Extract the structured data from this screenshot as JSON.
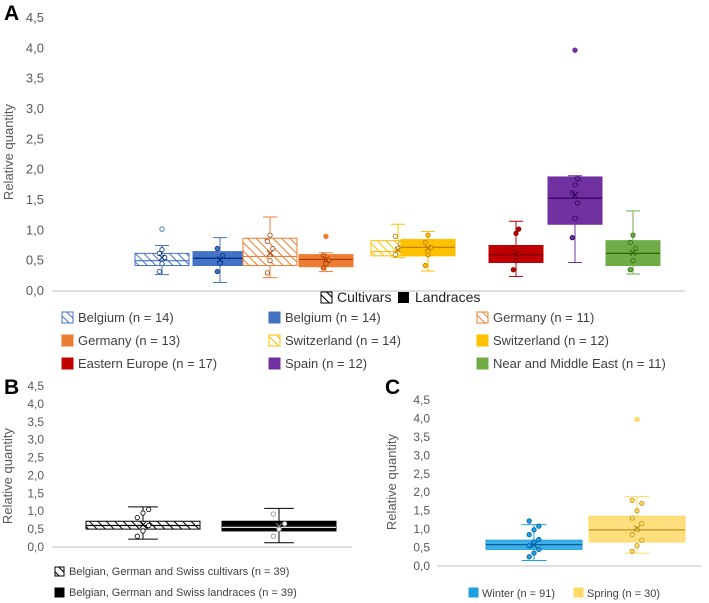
{
  "chart_data": [
    {
      "panel": "A",
      "type": "box",
      "title": "",
      "ylabel": "Relative quantity",
      "ylim": [
        0,
        4.5
      ],
      "yticks": [
        "0,0",
        "0,5",
        "1,0",
        "1,5",
        "2,0",
        "2,5",
        "3,0",
        "3,5",
        "4,0",
        "4,5"
      ],
      "type_legend": [
        {
          "label": "Cultivars",
          "fill": "hatch"
        },
        {
          "label": "Landraces",
          "fill": "solid"
        }
      ],
      "series": [
        {
          "name": "Belgium (n = 14)",
          "fill": "hatch",
          "color": "#4472C4",
          "min": 0.27,
          "q1": 0.42,
          "median": 0.5,
          "q3": 0.62,
          "max": 0.75,
          "mean": 0.55,
          "outliers": [
            1.02
          ],
          "points": [
            0.32,
            0.45,
            0.55,
            0.62,
            0.68
          ]
        },
        {
          "name": "Belgium (n = 14)",
          "fill": "solid",
          "color": "#4472C4",
          "min": 0.14,
          "q1": 0.42,
          "median": 0.54,
          "q3": 0.65,
          "max": 0.88,
          "mean": 0.52,
          "outliers": [],
          "points": [
            0.32,
            0.46,
            0.58,
            0.7
          ]
        },
        {
          "name": "Germany (n = 11)",
          "fill": "hatch",
          "color": "#ED7D31",
          "min": 0.22,
          "q1": 0.42,
          "median": 0.57,
          "q3": 0.87,
          "max": 1.22,
          "mean": 0.62,
          "outliers": [],
          "points": [
            0.3,
            0.5,
            0.7,
            0.82,
            0.92
          ]
        },
        {
          "name": "Germany (n = 13)",
          "fill": "solid",
          "color": "#ED7D31",
          "min": 0.32,
          "q1": 0.4,
          "median": 0.52,
          "q3": 0.6,
          "max": 0.63,
          "mean": 0.52,
          "outliers": [
            0.9
          ],
          "points": [
            0.38,
            0.45,
            0.5,
            0.58
          ]
        },
        {
          "name": "Switzerland (n = 14)",
          "fill": "hatch",
          "color": "#FFC000",
          "min": 0.55,
          "q1": 0.58,
          "median": 0.65,
          "q3": 0.83,
          "max": 1.1,
          "mean": 0.68,
          "outliers": [],
          "points": [
            0.6,
            0.7,
            0.78,
            0.9
          ]
        },
        {
          "name": "Switzerland (n = 12)",
          "fill": "solid",
          "color": "#FFC000",
          "min": 0.33,
          "q1": 0.58,
          "median": 0.72,
          "q3": 0.85,
          "max": 0.98,
          "mean": 0.7,
          "outliers": [],
          "points": [
            0.42,
            0.6,
            0.72,
            0.8,
            0.92
          ]
        },
        {
          "name": "Eastern Europe (n = 17)",
          "fill": "solid",
          "color": "#C00000",
          "min": 0.24,
          "q1": 0.47,
          "median": 0.6,
          "q3": 0.75,
          "max": 1.15,
          "mean": 0.6,
          "outliers": [],
          "points": [
            0.35,
            0.5,
            0.62,
            0.7,
            0.95,
            1.02
          ]
        },
        {
          "name": "Spain (n = 12)",
          "fill": "solid",
          "color": "#7030A0",
          "min": 0.47,
          "q1": 1.1,
          "median": 1.53,
          "q3": 1.88,
          "max": 1.9,
          "mean": 1.58,
          "outliers": [
            3.97
          ],
          "points": [
            0.88,
            1.2,
            1.45,
            1.62,
            1.75,
            1.85
          ]
        },
        {
          "name": "Near and Middle East (n = 11)",
          "fill": "solid",
          "color": "#70AD47",
          "min": 0.28,
          "q1": 0.42,
          "median": 0.62,
          "q3": 0.83,
          "max": 1.32,
          "mean": 0.63,
          "outliers": [],
          "points": [
            0.35,
            0.5,
            0.7,
            0.8,
            0.92
          ]
        }
      ]
    },
    {
      "panel": "B",
      "type": "box",
      "ylabel": "Relative quantity",
      "ylim": [
        0,
        4.5
      ],
      "yticks": [
        "0,0",
        "0,5",
        "1,0",
        "1,5",
        "2,0",
        "2,5",
        "3,0",
        "3,5",
        "4,0",
        "4,5"
      ],
      "series": [
        {
          "name": "Belgian, German and Swiss cultivars (n = 39)",
          "fill": "hatch",
          "color": "#000000",
          "min": 0.22,
          "q1": 0.5,
          "median": 0.6,
          "q3": 0.72,
          "max": 1.12,
          "mean": 0.62,
          "outliers": [],
          "points": [
            0.3,
            0.45,
            0.6,
            0.82,
            0.95,
            1.05
          ]
        },
        {
          "name": "Belgian, German and Swiss landraces (n = 39)",
          "fill": "solid",
          "color": "#000000",
          "min": 0.12,
          "q1": 0.45,
          "median": 0.55,
          "q3": 0.72,
          "max": 1.08,
          "mean": 0.58,
          "outliers": [],
          "points": [
            0.3,
            0.5,
            0.65,
            0.92
          ]
        }
      ]
    },
    {
      "panel": "C",
      "type": "box",
      "ylabel": "Relative quantity",
      "ylim": [
        0,
        4.5
      ],
      "yticks": [
        "0,0",
        "0,5",
        "1,0",
        "1,5",
        "2,0",
        "2,5",
        "3,0",
        "3,5",
        "4,0",
        "4,5"
      ],
      "series": [
        {
          "name": "Winter (n = 91)",
          "fill": "solid",
          "color": "#1BA1E2",
          "min": 0.15,
          "q1": 0.45,
          "median": 0.58,
          "q3": 0.7,
          "max": 1.12,
          "mean": 0.57,
          "outliers": [],
          "points": [
            0.25,
            0.35,
            0.45,
            0.55,
            0.65,
            0.72,
            0.85,
            0.98,
            1.08,
            1.22
          ]
        },
        {
          "name": "Spring (n = 30)",
          "fill": "solid",
          "color": "#FFD966",
          "min": 0.35,
          "q1": 0.65,
          "median": 0.98,
          "q3": 1.35,
          "max": 1.88,
          "mean": 1.02,
          "outliers": [
            3.97
          ],
          "points": [
            0.4,
            0.55,
            0.7,
            0.85,
            1.0,
            1.15,
            1.3,
            1.5,
            1.7,
            1.78
          ]
        }
      ]
    }
  ]
}
